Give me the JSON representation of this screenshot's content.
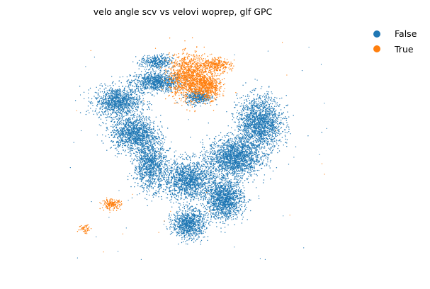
{
  "chart_data": {
    "type": "scatter",
    "title": "velo angle scv vs velovi woprep, glf GPC",
    "xlabel": "",
    "ylabel": "",
    "grid": false,
    "axes_visible": false,
    "legend_placement": "top-right",
    "legend": [
      {
        "name": "False",
        "color": "#1f77b4"
      },
      {
        "name": "True",
        "color": "#ff7f0e"
      }
    ],
    "point_density_note_free": true,
    "series": [
      {
        "name": "False",
        "color": "#1f77b4",
        "regions": [
          {
            "x": 0.42,
            "y": 0.78,
            "rx": 0.08,
            "ry": 0.04,
            "weight": 5
          },
          {
            "x": 0.3,
            "y": 0.7,
            "rx": 0.07,
            "ry": 0.06,
            "weight": 6
          },
          {
            "x": 0.35,
            "y": 0.57,
            "rx": 0.07,
            "ry": 0.07,
            "weight": 7
          },
          {
            "x": 0.4,
            "y": 0.44,
            "rx": 0.05,
            "ry": 0.1,
            "weight": 6
          },
          {
            "x": 0.52,
            "y": 0.38,
            "rx": 0.08,
            "ry": 0.08,
            "weight": 8
          },
          {
            "x": 0.66,
            "y": 0.47,
            "rx": 0.08,
            "ry": 0.08,
            "weight": 10
          },
          {
            "x": 0.74,
            "y": 0.61,
            "rx": 0.07,
            "ry": 0.11,
            "weight": 10
          },
          {
            "x": 0.63,
            "y": 0.3,
            "rx": 0.06,
            "ry": 0.08,
            "weight": 8
          },
          {
            "x": 0.52,
            "y": 0.2,
            "rx": 0.05,
            "ry": 0.06,
            "weight": 5
          },
          {
            "x": 0.42,
            "y": 0.86,
            "rx": 0.05,
            "ry": 0.03,
            "weight": 2
          },
          {
            "x": 0.55,
            "y": 0.72,
            "rx": 0.04,
            "ry": 0.03,
            "weight": 2
          }
        ]
      },
      {
        "name": "True",
        "color": "#ff7f0e",
        "regions": [
          {
            "x": 0.52,
            "y": 0.8,
            "rx": 0.06,
            "ry": 0.09,
            "weight": 7
          },
          {
            "x": 0.58,
            "y": 0.76,
            "rx": 0.04,
            "ry": 0.05,
            "weight": 3
          },
          {
            "x": 0.6,
            "y": 0.85,
            "rx": 0.05,
            "ry": 0.03,
            "weight": 2
          },
          {
            "x": 0.28,
            "y": 0.28,
            "rx": 0.03,
            "ry": 0.02,
            "weight": 1
          },
          {
            "x": 0.2,
            "y": 0.18,
            "rx": 0.02,
            "ry": 0.02,
            "weight": 0.3
          }
        ]
      }
    ]
  }
}
